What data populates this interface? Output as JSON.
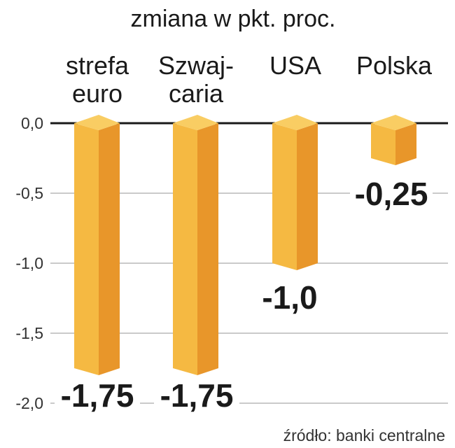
{
  "chart_data": {
    "type": "bar",
    "title": "zmiana  w pkt. proc.",
    "categories": [
      [
        "strefa",
        "euro"
      ],
      [
        "Szwaj-",
        "caria"
      ],
      [
        "USA"
      ],
      [
        "Polska"
      ]
    ],
    "values": [
      -1.75,
      -1.75,
      -1.0,
      -0.25
    ],
    "data_labels": [
      "-1,75",
      "-1,75",
      "-1,0",
      "-0,25"
    ],
    "yticks": [
      "0,0",
      "-0,5",
      "-1,0",
      "-1,5",
      "-2,0"
    ],
    "ylim": [
      -2.0,
      0.0
    ],
    "grid": true,
    "source": "źródło: banki centralne",
    "colors": {
      "bar_front": "#f5b942",
      "bar_side": "#e8962a",
      "bar_top": "#f9cd63",
      "grid": "#b9b9b9",
      "zero_line": "#1a1a1a"
    }
  }
}
